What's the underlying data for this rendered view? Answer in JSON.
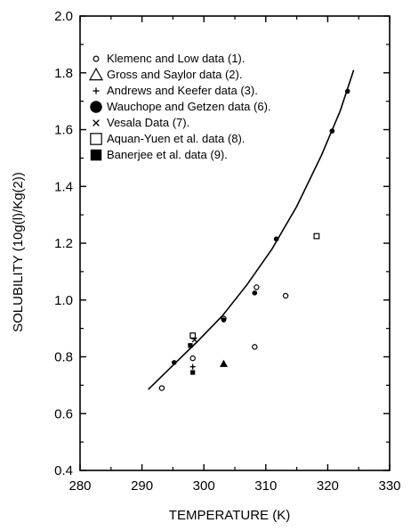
{
  "chart_data": {
    "type": "scatter",
    "title": "",
    "xlabel": "TEMPERATURE (K)",
    "ylabel": "SOLUBILITY (10g(l)/Kg(2))",
    "xlim": [
      280,
      330
    ],
    "ylim": [
      0.4,
      2.0
    ],
    "x_ticks": [
      "280",
      "290",
      "300",
      "310",
      "320",
      "330"
    ],
    "y_ticks": [
      "0.4",
      "0.6",
      "0.8",
      "1.0",
      "1.2",
      "1.4",
      "1.6",
      "1.8",
      "2.0"
    ],
    "x_tick_values": [
      280,
      290,
      300,
      310,
      320,
      330
    ],
    "y_tick_values": [
      0.4,
      0.6,
      0.8,
      1.0,
      1.2,
      1.4,
      1.6,
      1.8,
      2.0
    ],
    "legend_position": "top-left",
    "legend": [
      {
        "marker": "open-circle-small",
        "label": "Klemenc and Low data (1)."
      },
      {
        "marker": "triangle",
        "label": "Gross and Saylor data (2)."
      },
      {
        "marker": "plus",
        "label": "Andrews and Keefer data (3)."
      },
      {
        "marker": "filled-circle",
        "label": "Wauchope and Getzen data (6)."
      },
      {
        "marker": "cross",
        "label": "Vesala Data (7)."
      },
      {
        "marker": "open-square",
        "label": "Aquan-Yuen et al. data (8)."
      },
      {
        "marker": "filled-square",
        "label": "Banerjee et al. data (9)."
      }
    ],
    "series": [
      {
        "marker": "open-circle-small",
        "points": [
          [
            293.2,
            0.69
          ],
          [
            298.2,
            0.795
          ],
          [
            303.2,
            0.935
          ],
          [
            308.5,
            1.045
          ],
          [
            308.2,
            0.835
          ],
          [
            313.2,
            1.015
          ]
        ]
      },
      {
        "marker": "triangle",
        "points": [
          [
            303.2,
            0.775
          ]
        ]
      },
      {
        "marker": "plus",
        "points": [
          [
            298.2,
            0.765
          ]
        ]
      },
      {
        "marker": "filled-circle",
        "points": [
          [
            295.2,
            0.78
          ],
          [
            298.2,
            0.87
          ],
          [
            303.2,
            0.93
          ],
          [
            308.2,
            1.025
          ],
          [
            311.7,
            1.215
          ],
          [
            320.7,
            1.595
          ],
          [
            323.2,
            1.735
          ]
        ]
      },
      {
        "marker": "cross",
        "points": [
          [
            298.5,
            0.86
          ]
        ]
      },
      {
        "marker": "open-square",
        "points": [
          [
            298.2,
            0.875
          ],
          [
            318.2,
            1.225
          ]
        ]
      },
      {
        "marker": "filled-square",
        "points": [
          [
            297.8,
            0.84
          ],
          [
            298.2,
            0.745
          ]
        ]
      }
    ],
    "fit_curve": {
      "x": [
        291,
        295,
        299,
        303,
        307,
        311,
        315,
        319,
        322,
        324.2
      ],
      "y": [
        0.685,
        0.77,
        0.855,
        0.945,
        1.055,
        1.18,
        1.33,
        1.51,
        1.665,
        1.81
      ]
    }
  }
}
